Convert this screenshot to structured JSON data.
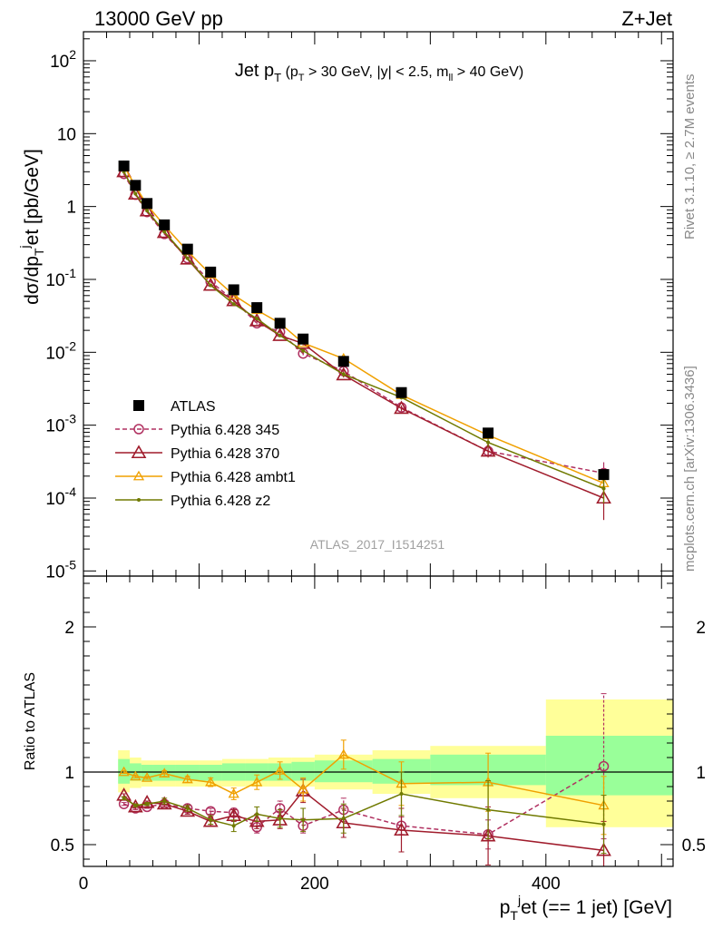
{
  "header": {
    "left": "13000 GeV pp",
    "right": "Z+Jet"
  },
  "side_labels": {
    "rivet": "Rivet 3.1.10, ≥ 2.7M events",
    "mcplots": "mcplots.cern.ch [arXiv:1306.3436]"
  },
  "analysis_id": "ATLAS_2017_I1514251",
  "chart_data": [
    {
      "type": "line",
      "panel": "main",
      "title": "Jet pT (pT > 30 GeV, |y| < 2.5, mll > 40 GeV)",
      "ylabel": "dσ/dp_T^jet [pb/GeV]",
      "xlabel": "",
      "yscale": "log",
      "xlim": [
        0,
        510
      ],
      "ylim": [
        8.5e-06,
        250
      ],
      "ytick_labels": [
        "10^-5",
        "10^-4",
        "10^-3",
        "10^-2",
        "10^-1",
        "1",
        "10",
        "10^2"
      ],
      "legend_position": "lower-left",
      "x": [
        35,
        45,
        55,
        70,
        90,
        110,
        130,
        150,
        170,
        190,
        225,
        275,
        350,
        450
      ],
      "series": [
        {
          "name": "ATLAS",
          "color": "#000000",
          "marker": "filled-square",
          "values": [
            3.6,
            1.95,
            1.1,
            0.56,
            0.26,
            0.126,
            0.072,
            0.041,
            0.025,
            0.0152,
            0.0075,
            0.0028,
            0.00078,
            0.00021
          ]
        },
        {
          "name": "Pythia 6.428 345",
          "color": "#b03060",
          "marker": "open-circle",
          "dashed": true,
          "values": [
            2.8,
            1.45,
            0.84,
            0.42,
            0.195,
            0.093,
            0.052,
            0.025,
            0.019,
            0.0096,
            0.0055,
            0.00175,
            0.00044,
            0.00022
          ],
          "err": [
            0.08,
            0.04,
            0.02,
            0.01,
            0.005,
            0.003,
            0.002,
            0.001,
            0.0008,
            0.0005,
            0.0003,
            0.00012,
            6e-05,
            9e-05
          ]
        },
        {
          "name": "Pythia 6.428 370",
          "color": "#a01c2c",
          "marker": "open-triangle",
          "values": [
            3.0,
            1.48,
            0.87,
            0.44,
            0.19,
            0.083,
            0.051,
            0.027,
            0.017,
            0.0132,
            0.0049,
            0.0017,
            0.00044,
            0.0001
          ],
          "err": [
            0.08,
            0.04,
            0.02,
            0.01,
            0.005,
            0.003,
            0.002,
            0.001,
            0.0008,
            0.0008,
            0.0004,
            0.00015,
            8e-05,
            5e-05
          ]
        },
        {
          "name": "Pythia 6.428 ambt1",
          "color": "#f0a000",
          "marker": "open-triangle-small",
          "values": [
            3.6,
            1.9,
            1.05,
            0.55,
            0.245,
            0.117,
            0.061,
            0.038,
            0.025,
            0.0134,
            0.0082,
            0.0026,
            0.00073,
            0.00016
          ],
          "err": [
            0.08,
            0.04,
            0.02,
            0.01,
            0.005,
            0.003,
            0.002,
            0.001,
            0.0008,
            0.0008,
            0.0004,
            0.00015,
            8e-05,
            5e-05
          ]
        },
        {
          "name": "Pythia 6.428 z2",
          "color": "#707a00",
          "marker": "dot",
          "values": [
            3.0,
            1.5,
            0.88,
            0.45,
            0.195,
            0.083,
            0.046,
            0.029,
            0.017,
            0.0105,
            0.005,
            0.0024,
            0.00058,
            0.000135
          ],
          "err": [
            0.08,
            0.04,
            0.02,
            0.01,
            0.005,
            0.003,
            0.002,
            0.001,
            0.0008,
            0.0007,
            0.0004,
            0.00015,
            8e-05,
            5e-05
          ]
        }
      ]
    },
    {
      "type": "line",
      "panel": "ratio",
      "ylabel": "Ratio to ATLAS",
      "xlabel": "p_T^jet (== 1 jet) [GeV]",
      "xlim": [
        0,
        510
      ],
      "ylim": [
        0.35,
        2.35
      ],
      "xtick_labels": [
        "0",
        "200",
        "400"
      ],
      "ytick_labels": [
        "0.5",
        "1",
        "2"
      ],
      "band_edges": [
        30,
        40,
        50,
        60,
        80,
        100,
        120,
        140,
        160,
        180,
        200,
        250,
        300,
        400,
        510
      ],
      "yellow_band": {
        "lower": [
          0.86,
          0.89,
          0.9,
          0.9,
          0.9,
          0.9,
          0.9,
          0.9,
          0.9,
          0.9,
          0.88,
          0.85,
          0.82,
          0.62
        ],
        "upper": [
          1.15,
          1.1,
          1.08,
          1.08,
          1.08,
          1.08,
          1.09,
          1.09,
          1.1,
          1.1,
          1.12,
          1.15,
          1.18,
          1.5
        ]
      },
      "green_band": {
        "lower": [
          0.92,
          0.94,
          0.94,
          0.94,
          0.94,
          0.94,
          0.94,
          0.94,
          0.94,
          0.94,
          0.93,
          0.92,
          0.91,
          0.84
        ],
        "upper": [
          1.09,
          1.06,
          1.05,
          1.05,
          1.05,
          1.05,
          1.06,
          1.06,
          1.06,
          1.07,
          1.08,
          1.09,
          1.12,
          1.25
        ]
      },
      "x": [
        35,
        45,
        55,
        70,
        90,
        110,
        130,
        150,
        170,
        190,
        225,
        275,
        350,
        450
      ],
      "series": [
        {
          "name": "Pythia 6.428 345",
          "color": "#b03060",
          "marker": "open-circle",
          "dashed": true,
          "values": [
            0.78,
            0.75,
            0.76,
            0.78,
            0.75,
            0.73,
            0.72,
            0.62,
            0.75,
            0.63,
            0.74,
            0.63,
            0.57,
            1.04
          ],
          "err": [
            0.01,
            0.01,
            0.01,
            0.01,
            0.02,
            0.02,
            0.03,
            0.04,
            0.05,
            0.05,
            0.08,
            0.06,
            0.1,
            0.5
          ]
        },
        {
          "name": "Pythia 6.428 370",
          "color": "#a01c2c",
          "marker": "open-triangle",
          "values": [
            0.84,
            0.76,
            0.79,
            0.78,
            0.73,
            0.66,
            0.7,
            0.66,
            0.67,
            0.87,
            0.65,
            0.6,
            0.56,
            0.46
          ],
          "err": [
            0.01,
            0.01,
            0.01,
            0.02,
            0.02,
            0.03,
            0.04,
            0.05,
            0.06,
            0.08,
            0.1,
            0.15,
            0.2,
            0.2
          ]
        },
        {
          "name": "Pythia 6.428 ambt1",
          "color": "#f0a000",
          "marker": "open-triangle-small",
          "values": [
            1.0,
            0.97,
            0.96,
            0.99,
            0.95,
            0.93,
            0.85,
            0.93,
            1.01,
            0.88,
            1.12,
            0.92,
            0.93,
            0.77
          ],
          "err": [
            0.01,
            0.01,
            0.01,
            0.02,
            0.02,
            0.03,
            0.04,
            0.05,
            0.06,
            0.08,
            0.1,
            0.15,
            0.2,
            0.2
          ]
        },
        {
          "name": "Pythia 6.428 z2",
          "color": "#707a00",
          "marker": "dot",
          "values": [
            0.82,
            0.77,
            0.78,
            0.8,
            0.75,
            0.67,
            0.63,
            0.71,
            0.68,
            0.67,
            0.68,
            0.85,
            0.74,
            0.64
          ],
          "err": [
            0.01,
            0.01,
            0.01,
            0.02,
            0.02,
            0.03,
            0.04,
            0.05,
            0.06,
            0.08,
            0.1,
            0.15,
            0.2,
            0.2
          ]
        }
      ],
      "reference_line": 1
    }
  ]
}
